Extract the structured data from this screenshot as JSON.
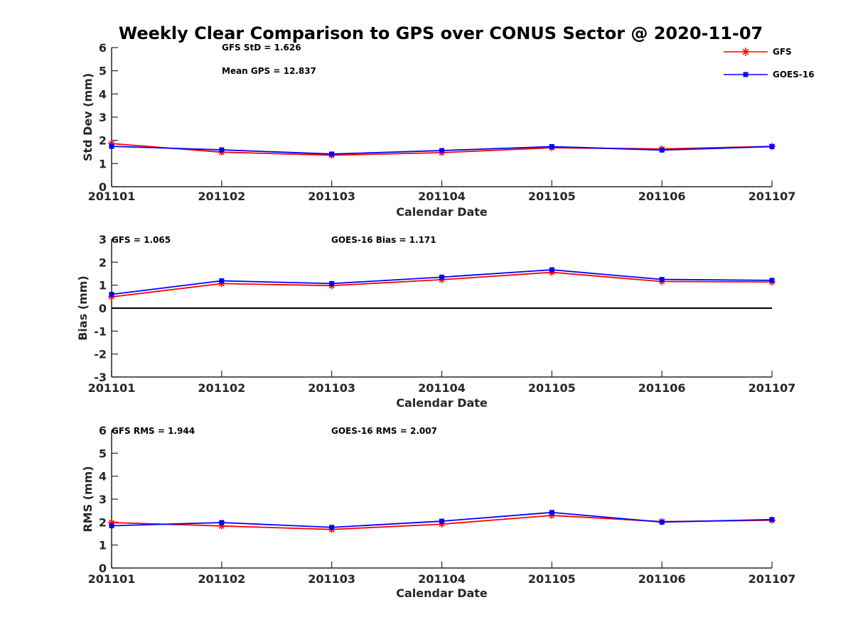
{
  "title": "Weekly Clear Comparison to GPS over CONUS Sector @ 2020-11-07",
  "legend": [
    {
      "name": "GFS",
      "color": "#ff0000",
      "marker": "asterisk"
    },
    {
      "name": "GOES-16",
      "color": "#0000ff",
      "marker": "square"
    }
  ],
  "chart_data": [
    {
      "type": "line",
      "categories": [
        "201101",
        "201102",
        "201103",
        "201104",
        "201105",
        "201106",
        "201107"
      ],
      "xlabel": "Calendar Date",
      "ylabel": "Std Dev (mm)",
      "ylim": [
        0,
        6
      ],
      "yticks": [
        "0",
        "1",
        "2",
        "3",
        "4",
        "5",
        "6"
      ],
      "zero_line": false,
      "annotations": [
        "GFS StD = 1.626",
        "Mean GPS = 12.837"
      ],
      "series": [
        {
          "name": "GFS",
          "values": [
            1.86,
            1.49,
            1.36,
            1.47,
            1.68,
            1.63,
            1.74
          ]
        },
        {
          "name": "GOES-16",
          "values": [
            1.74,
            1.59,
            1.41,
            1.56,
            1.73,
            1.58,
            1.73
          ]
        }
      ]
    },
    {
      "type": "line",
      "categories": [
        "201101",
        "201102",
        "201103",
        "201104",
        "201105",
        "201106",
        "201107"
      ],
      "xlabel": "Calendar Date",
      "ylabel": "Bias (mm)",
      "ylim": [
        -3,
        3
      ],
      "yticks": [
        "-3",
        "-2",
        "-1",
        "0",
        "1",
        "2",
        "3"
      ],
      "zero_line": true,
      "annotations": [
        "GFS = 1.065",
        "GOES-16 Bias  = 1.171"
      ],
      "series": [
        {
          "name": "GFS",
          "values": [
            0.49,
            1.07,
            0.98,
            1.24,
            1.56,
            1.16,
            1.14
          ]
        },
        {
          "name": "GOES-16",
          "values": [
            0.6,
            1.19,
            1.07,
            1.35,
            1.67,
            1.25,
            1.21
          ]
        }
      ]
    },
    {
      "type": "line",
      "categories": [
        "201101",
        "201102",
        "201103",
        "201104",
        "201105",
        "201106",
        "201107"
      ],
      "xlabel": "Calendar Date",
      "ylabel": "RMS (mm)",
      "ylim": [
        0,
        6
      ],
      "yticks": [
        "0",
        "1",
        "2",
        "3",
        "4",
        "5",
        "6"
      ],
      "zero_line": false,
      "annotations": [
        "GFS RMS = 1.944",
        "GOES-16 RMS = 2.007"
      ],
      "series": [
        {
          "name": "GFS",
          "values": [
            1.98,
            1.83,
            1.68,
            1.91,
            2.29,
            2.02,
            2.08
          ]
        },
        {
          "name": "GOES-16",
          "values": [
            1.84,
            1.98,
            1.77,
            2.04,
            2.42,
            2.0,
            2.11
          ]
        }
      ]
    }
  ]
}
